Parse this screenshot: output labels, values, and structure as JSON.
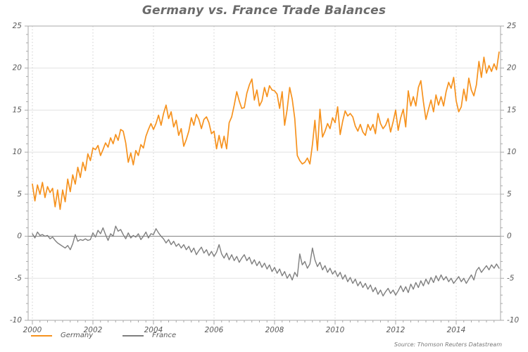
{
  "header": {
    "title": "Germany vs. France Trade Balances"
  },
  "source": {
    "text": "Source: Thomson Reuters Datastream"
  },
  "colors": {
    "germany_line": "#F6921E",
    "france_line": "#7f7f7f",
    "axis": "#a9a9a9",
    "grid_h": "#e2e2e2",
    "grid_v": "#cfcfcf",
    "zero_line": "#8c8c8c",
    "tick_label": "#595959"
  },
  "chart_data": {
    "type": "line",
    "title": "Germany vs. France Trade Balances",
    "xlabel": "",
    "ylabel": "",
    "x_start_year": 2000,
    "x_end_year": 2015.42,
    "x_tick_labels": [
      "2000",
      "2002",
      "2004",
      "2006",
      "2008",
      "2010",
      "2012",
      "2014"
    ],
    "x_tick_years": [
      2000,
      2002,
      2004,
      2006,
      2008,
      2010,
      2012,
      2014
    ],
    "ylim": [
      -10,
      25
    ],
    "y_major_step": 5,
    "y_minor_step": 1,
    "y_tick_labels": [
      "-10",
      "-5",
      "0",
      "5",
      "10",
      "15",
      "20",
      "25"
    ],
    "grid": "horizontal solid + vertical dashed at 2-year ticks",
    "legend_position": "bottom-left",
    "frequency": "monthly",
    "series": [
      {
        "name": "Germany",
        "color": "#F6921E",
        "width": 1.7,
        "values": [
          6.2,
          4.2,
          6.1,
          5.0,
          6.4,
          4.6,
          5.9,
          5.2,
          5.7,
          3.5,
          5.5,
          3.2,
          5.5,
          4.1,
          6.8,
          5.3,
          7.3,
          6.2,
          8.2,
          7.0,
          8.8,
          7.8,
          9.8,
          9.0,
          10.5,
          10.3,
          10.8,
          9.6,
          10.3,
          11.1,
          10.6,
          11.7,
          11.0,
          12.1,
          11.4,
          12.7,
          12.5,
          11.1,
          8.8,
          9.9,
          8.5,
          10.2,
          9.6,
          10.9,
          10.5,
          11.9,
          12.7,
          13.4,
          12.7,
          13.4,
          14.4,
          13.2,
          14.6,
          15.6,
          14.0,
          14.8,
          13.0,
          13.8,
          12.0,
          12.8,
          10.7,
          11.5,
          12.5,
          14.1,
          13.2,
          14.5,
          13.9,
          12.8,
          13.9,
          14.2,
          13.5,
          12.2,
          12.5,
          10.4,
          12.0,
          10.5,
          11.9,
          10.4,
          13.5,
          14.2,
          15.6,
          17.2,
          16.1,
          15.2,
          15.3,
          17.0,
          18.0,
          18.7,
          16.2,
          17.4,
          15.5,
          16.1,
          17.7,
          16.6,
          17.9,
          17.4,
          17.3,
          16.9,
          15.2,
          17.2,
          13.2,
          15.1,
          17.7,
          16.3,
          14.0,
          9.6,
          9.0,
          8.6,
          8.8,
          9.3,
          8.6,
          10.9,
          13.8,
          10.2,
          15.1,
          11.8,
          12.5,
          13.4,
          12.8,
          14.1,
          13.5,
          15.4,
          12.1,
          13.7,
          14.9,
          14.3,
          14.6,
          14.2,
          13.1,
          12.5,
          13.3,
          12.4,
          12.0,
          13.3,
          12.6,
          13.3,
          12.2,
          14.6,
          13.4,
          12.8,
          13.2,
          14.0,
          12.4,
          13.6,
          15.0,
          12.6,
          14.1,
          15.1,
          13.0,
          17.3,
          15.5,
          16.6,
          15.5,
          17.7,
          18.5,
          16.0,
          13.9,
          15.1,
          16.2,
          14.8,
          16.8,
          15.6,
          16.6,
          15.5,
          17.2,
          18.3,
          17.6,
          18.9,
          16.1,
          14.8,
          15.4,
          17.5,
          16.1,
          18.8,
          17.4,
          16.7,
          18.0,
          20.8,
          18.9,
          21.3,
          19.4,
          20.3,
          19.6,
          20.5,
          19.8,
          21.9
        ]
      },
      {
        "name": "France",
        "color": "#7f7f7f",
        "width": 1.4,
        "values": [
          0.3,
          -0.2,
          0.5,
          0.1,
          0.2,
          0.0,
          0.1,
          -0.3,
          -0.1,
          -0.5,
          -0.8,
          -1.0,
          -1.2,
          -1.4,
          -1.1,
          -1.6,
          -0.9,
          0.2,
          -0.6,
          -0.4,
          -0.5,
          -0.3,
          -0.5,
          -0.4,
          0.4,
          -0.1,
          0.7,
          0.3,
          1.0,
          0.2,
          -0.5,
          0.3,
          0.0,
          1.2,
          0.6,
          0.8,
          0.2,
          -0.3,
          0.4,
          -0.2,
          0.1,
          -0.1,
          0.3,
          -0.4,
          0.0,
          0.5,
          -0.2,
          0.3,
          0.2,
          0.9,
          0.4,
          0.0,
          -0.3,
          -0.8,
          -0.4,
          -1.0,
          -0.6,
          -1.2,
          -0.9,
          -1.4,
          -1.0,
          -1.6,
          -1.2,
          -1.9,
          -1.4,
          -2.2,
          -1.7,
          -1.3,
          -2.0,
          -1.6,
          -2.3,
          -1.8,
          -2.4,
          -1.9,
          -1.0,
          -2.1,
          -2.6,
          -2.0,
          -2.8,
          -2.2,
          -2.9,
          -2.4,
          -3.1,
          -2.6,
          -2.2,
          -2.9,
          -2.5,
          -3.3,
          -2.8,
          -3.5,
          -3.0,
          -3.7,
          -3.2,
          -3.9,
          -3.4,
          -4.2,
          -3.7,
          -4.4,
          -3.9,
          -4.7,
          -4.2,
          -5.0,
          -4.5,
          -5.2,
          -4.3,
          -4.8,
          -2.1,
          -3.4,
          -3.0,
          -3.8,
          -3.3,
          -1.4,
          -2.8,
          -3.6,
          -3.1,
          -4.0,
          -3.5,
          -4.3,
          -3.8,
          -4.5,
          -4.1,
          -4.8,
          -4.3,
          -5.1,
          -4.6,
          -5.4,
          -4.9,
          -5.6,
          -5.1,
          -5.9,
          -5.4,
          -6.1,
          -5.6,
          -6.3,
          -5.8,
          -6.6,
          -6.1,
          -6.9,
          -6.4,
          -7.1,
          -6.6,
          -6.2,
          -6.8,
          -6.4,
          -7.0,
          -6.5,
          -5.9,
          -6.6,
          -6.0,
          -6.7,
          -5.7,
          -6.3,
          -5.5,
          -6.1,
          -5.3,
          -5.9,
          -5.1,
          -5.7,
          -4.9,
          -5.5,
          -4.7,
          -5.3,
          -4.6,
          -5.2,
          -4.8,
          -5.4,
          -5.0,
          -5.6,
          -5.2,
          -4.8,
          -5.4,
          -5.0,
          -5.6,
          -5.1,
          -4.6,
          -5.2,
          -4.1,
          -3.7,
          -4.3,
          -3.9,
          -3.5,
          -4.0,
          -3.4,
          -3.8,
          -3.3,
          -3.8
        ]
      }
    ]
  }
}
